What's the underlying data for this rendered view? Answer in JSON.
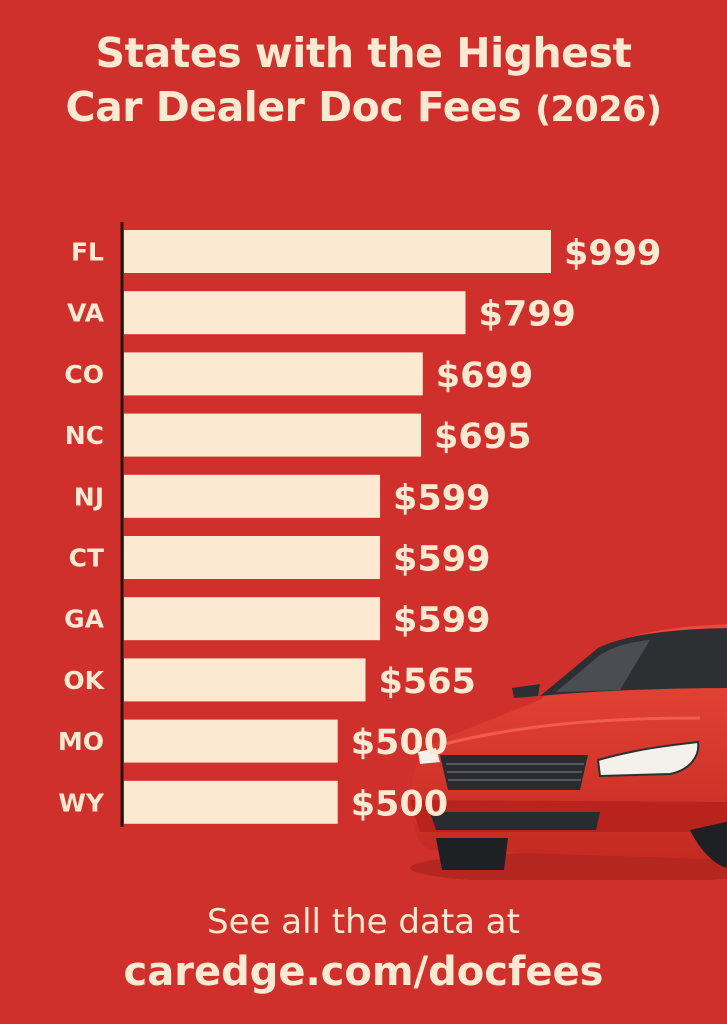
{
  "header": {
    "title_line1": "States with the Highest",
    "title_line2": "Car Dealer Doc Fees",
    "title_year": "(2026)"
  },
  "chart_data": {
    "type": "bar",
    "orientation": "horizontal",
    "categories": [
      "FL",
      "VA",
      "CO",
      "NC",
      "NJ",
      "CT",
      "GA",
      "OK",
      "MO",
      "WY"
    ],
    "values": [
      999,
      799,
      699,
      695,
      599,
      599,
      599,
      565,
      500,
      500
    ],
    "value_labels": [
      "$999",
      "$799",
      "$699",
      "$695",
      "$599",
      "$599",
      "$599",
      "$565",
      "$500",
      "$500"
    ],
    "xlim": [
      0,
      1000
    ],
    "grid": false,
    "legend": "none",
    "colors": {
      "background": "#d0302b",
      "bar": "#fbe9d2",
      "text": "#fbe9d2"
    }
  },
  "illustration": {
    "icon": "red-sedan-car-icon"
  },
  "footer": {
    "line1": "See all the data at",
    "line2": "caredge.com/docfees"
  }
}
